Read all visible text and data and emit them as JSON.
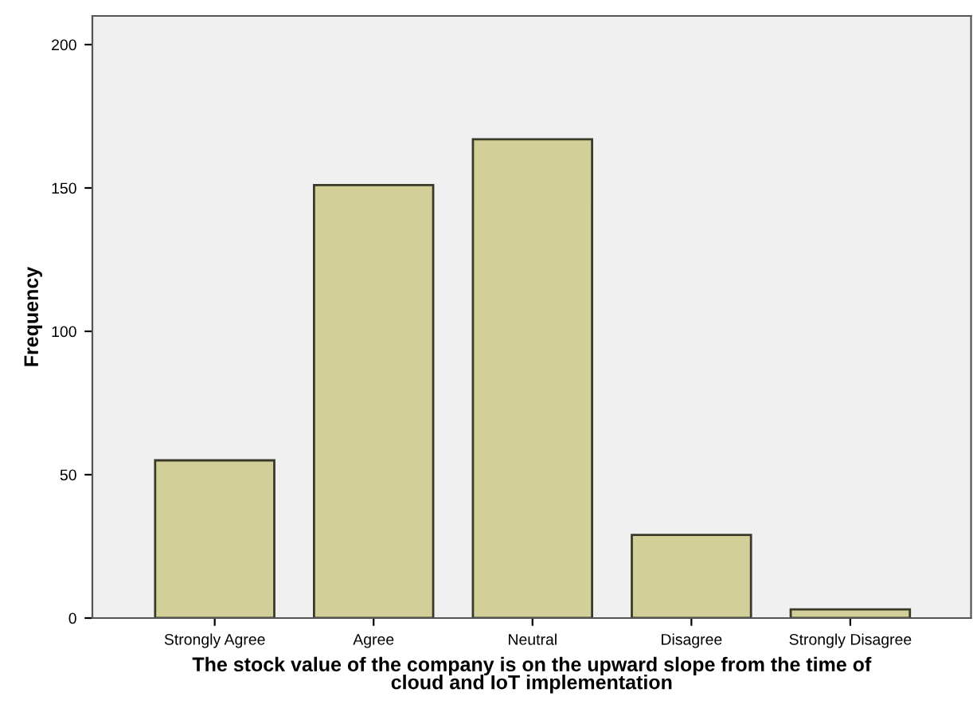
{
  "chart_data": {
    "type": "bar",
    "xlabel": "The stock value of the company is on the upward slope from the time of\ncloud and IoT implementation",
    "ylabel": "Frequency",
    "categories": [
      "Strongly Agree",
      "Agree",
      "Neutral",
      "Disagree",
      "Strongly Disagree"
    ],
    "values": [
      55,
      151,
      167,
      29,
      3
    ],
    "color": "#d3cf98",
    "ylim": [
      0,
      210
    ],
    "yticks": [
      0,
      50,
      100,
      150,
      200
    ],
    "grid": false
  }
}
